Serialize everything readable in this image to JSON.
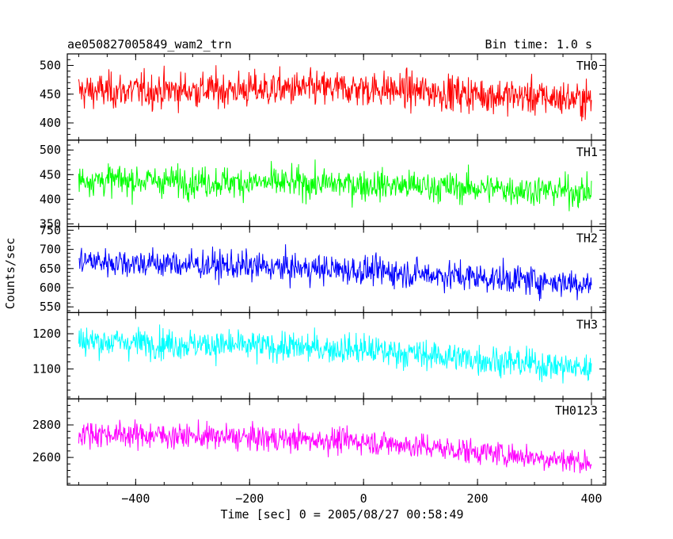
{
  "chart_data": {
    "type": "line",
    "title_left": "ae050827005849_wam2_trn",
    "title_right": "Bin time: 1.0 s",
    "xlabel": "Time [sec] 0 = 2005/08/27 00:58:49",
    "ylabel": "Counts/sec",
    "xlim": [
      -520,
      425
    ],
    "x_ticks": [
      -400,
      -200,
      0,
      200,
      400
    ],
    "x_tick_labels": [
      "−400",
      "−200",
      "0",
      "200",
      "400"
    ],
    "x_range": [
      -500,
      400
    ],
    "panels": [
      {
        "name": "TH0",
        "color": "#ff0000",
        "ylim": [
          370,
          520
        ],
        "y_ticks": [
          400,
          450,
          500
        ],
        "y_tick_labels": [
          "400",
          "450",
          "500"
        ],
        "trend": [
          [
            -500,
            455
          ],
          [
            0,
            460
          ],
          [
            400,
            440
          ]
        ],
        "noise_sd": 22
      },
      {
        "name": "TH1",
        "color": "#00ff00",
        "ylim": [
          345,
          520
        ],
        "y_ticks": [
          350,
          400,
          450,
          500
        ],
        "y_tick_labels": [
          "350",
          "400",
          "450",
          "500"
        ],
        "trend": [
          [
            -500,
            440
          ],
          [
            0,
            430
          ],
          [
            400,
            415
          ]
        ],
        "noise_sd": 22
      },
      {
        "name": "TH2",
        "color": "#0000ff",
        "ylim": [
          535,
          760
        ],
        "y_ticks": [
          550,
          600,
          650,
          700,
          750
        ],
        "y_tick_labels": [
          "550",
          "600",
          "650",
          "700",
          "750"
        ],
        "trend": [
          [
            -500,
            670
          ],
          [
            0,
            645
          ],
          [
            400,
            610
          ]
        ],
        "noise_sd": 27
      },
      {
        "name": "TH3",
        "color": "#00ffff",
        "ylim": [
          1015,
          1260
        ],
        "y_ticks": [
          1100,
          1200
        ],
        "y_tick_labels": [
          "1100",
          "1200"
        ],
        "trend": [
          [
            -500,
            1180
          ],
          [
            0,
            1155
          ],
          [
            400,
            1100
          ]
        ],
        "noise_sd": 30
      },
      {
        "name": "TH0123",
        "color": "#ff00ff",
        "ylim": [
          2430,
          2960
        ],
        "y_ticks": [
          2600,
          2800
        ],
        "y_tick_labels": [
          "2600",
          "2800"
        ],
        "trend": [
          [
            -500,
            2750
          ],
          [
            0,
            2700
          ],
          [
            400,
            2570
          ]
        ],
        "noise_sd": 55
      }
    ]
  }
}
